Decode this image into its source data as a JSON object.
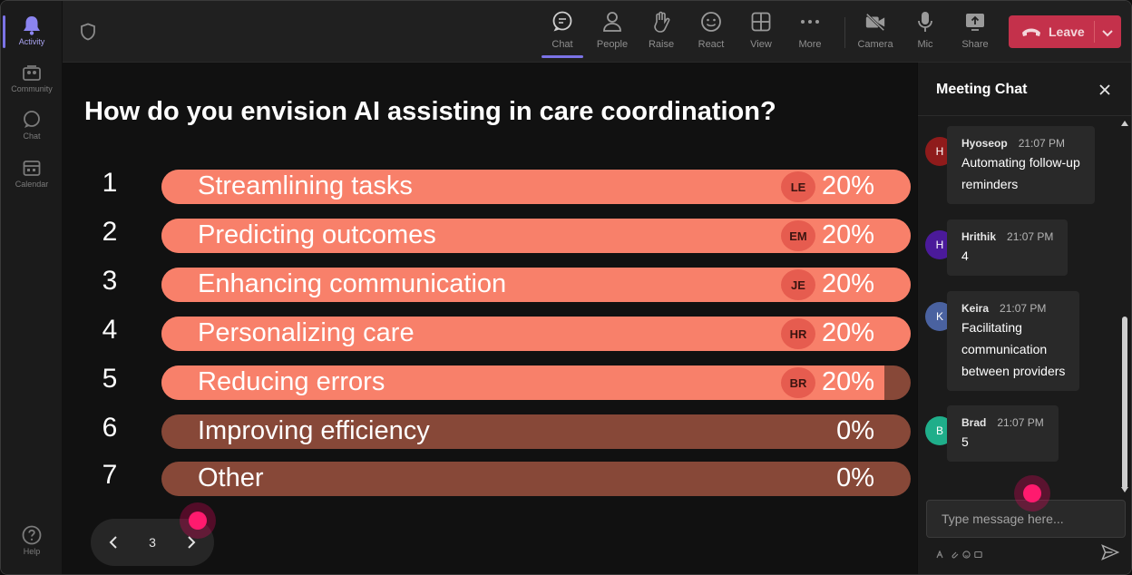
{
  "rail": {
    "items": [
      {
        "id": "activity",
        "label": "Activity",
        "active": true
      },
      {
        "id": "community",
        "label": "Community",
        "active": false
      },
      {
        "id": "chat",
        "label": "Chat",
        "active": false
      },
      {
        "id": "calendar",
        "label": "Calendar",
        "active": false
      }
    ],
    "help_label": "Help"
  },
  "toolbar": {
    "buttons": [
      {
        "id": "chat",
        "label": "Chat",
        "active": true
      },
      {
        "id": "people",
        "label": "People",
        "active": false
      },
      {
        "id": "raise",
        "label": "Raise",
        "active": false
      },
      {
        "id": "react",
        "label": "React",
        "active": false
      },
      {
        "id": "view",
        "label": "View",
        "active": false
      },
      {
        "id": "more",
        "label": "More",
        "active": false
      },
      {
        "id": "camera",
        "label": "Camera",
        "active": false
      },
      {
        "id": "mic",
        "label": "Mic",
        "active": false
      },
      {
        "id": "share",
        "label": "Share",
        "active": false
      }
    ],
    "leave_label": "Leave"
  },
  "poll": {
    "question": "How do you envision AI assisting in care coordination?",
    "options": [
      {
        "number": "1",
        "label": "Streamlining tasks",
        "percent": "20%",
        "fill": 1.0,
        "avatar": "LE"
      },
      {
        "number": "2",
        "label": "Predicting outcomes",
        "percent": "20%",
        "fill": 1.0,
        "avatar": "EM"
      },
      {
        "number": "3",
        "label": "Enhancing communication",
        "percent": "20%",
        "fill": 1.0,
        "avatar": "JE"
      },
      {
        "number": "4",
        "label": "Personalizing care",
        "percent": "20%",
        "fill": 1.0,
        "avatar": "HR"
      },
      {
        "number": "5",
        "label": "Reducing errors",
        "percent": "20%",
        "fill": 0.965,
        "avatar": "BR"
      },
      {
        "number": "6",
        "label": "Improving efficiency",
        "percent": "0%",
        "fill": 0,
        "avatar": ""
      },
      {
        "number": "7",
        "label": "Other",
        "percent": "0%",
        "fill": 0,
        "avatar": ""
      }
    ],
    "page": "3"
  },
  "chat": {
    "title": "Meeting Chat",
    "messages": [
      {
        "initial": "H",
        "avatar_color": "#8f1b1b",
        "name": "Hyoseop",
        "time": "21:07 PM",
        "lines": [
          "Automating follow-up",
          "reminders"
        ]
      },
      {
        "initial": "H",
        "avatar_color": "#4b1a9a",
        "name": "Hrithik",
        "time": "21:07 PM",
        "lines": [
          "4"
        ]
      },
      {
        "initial": "K",
        "avatar_color": "#4a62a0",
        "name": "Keira",
        "time": "21:07 PM",
        "lines": [
          "Facilitating",
          "communication",
          "between providers"
        ]
      },
      {
        "initial": "B",
        "avatar_color": "#1fae8a",
        "name": "Brad",
        "time": "21:07 PM",
        "lines": [
          "5"
        ]
      }
    ],
    "input_placeholder": "Type message here..."
  },
  "colors": {
    "bar_fill": "#f8806a",
    "bar_track": "#874838",
    "leave_button": "#c4314b",
    "accent": "#7b73e6",
    "cursor": "#ff1a6e"
  }
}
